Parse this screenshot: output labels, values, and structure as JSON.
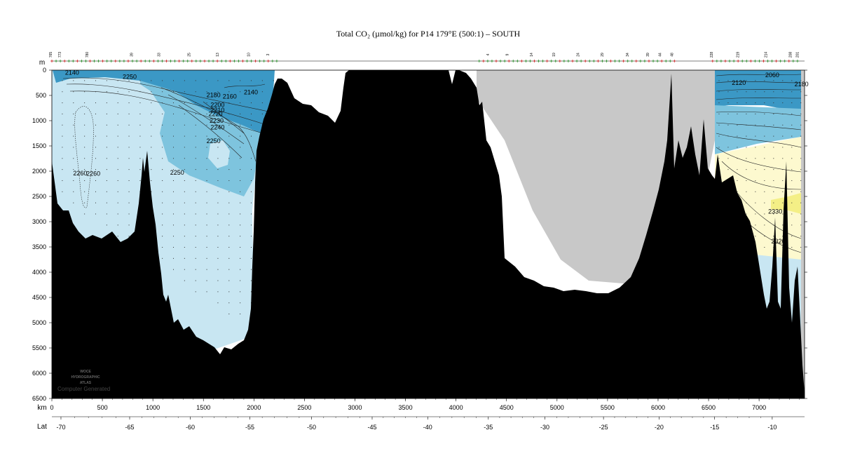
{
  "chart_data": {
    "type": "heatmap",
    "title": "Total CO₂ (µmol/kg) for P14 179°E (500:1) – SOUTH",
    "depth_unit": "m",
    "distance_unit": "km",
    "lat_label": "Lat",
    "xlim": [
      0,
      7450
    ],
    "ylim": [
      6500,
      0
    ],
    "depth_ticks": [
      0,
      500,
      1000,
      1500,
      2000,
      2500,
      3000,
      3500,
      4000,
      4500,
      5000,
      5500,
      6000,
      6500
    ],
    "km_ticks": [
      0,
      500,
      1000,
      1500,
      2000,
      2500,
      3000,
      3500,
      4000,
      4500,
      5000,
      5500,
      6000,
      6500,
      7000
    ],
    "lat_ticks": [
      {
        "label": "-70",
        "km": 90
      },
      {
        "label": "-65",
        "km": 770
      },
      {
        "label": "-60",
        "km": 1370
      },
      {
        "label": "-55",
        "km": 1960
      },
      {
        "label": "-50",
        "km": 2570
      },
      {
        "label": "-45",
        "km": 3170
      },
      {
        "label": "-40",
        "km": 3720
      },
      {
        "label": "-35",
        "km": 4320
      },
      {
        "label": "-30",
        "km": 4880
      },
      {
        "label": "-25",
        "km": 5460
      },
      {
        "label": "-20",
        "km": 6010
      },
      {
        "label": "-15",
        "km": 6560
      },
      {
        "label": "-10",
        "km": 7130
      }
    ],
    "station_labels": [
      {
        "text": "765",
        "km": 0
      },
      {
        "text": "773",
        "km": 90
      },
      {
        "text": "780",
        "km": 360
      },
      {
        "text": "39",
        "km": 800
      },
      {
        "text": "33",
        "km": 1070
      },
      {
        "text": "25",
        "km": 1370
      },
      {
        "text": "13",
        "km": 1650
      },
      {
        "text": "10",
        "km": 1960
      },
      {
        "text": "3",
        "km": 2150
      },
      {
        "text": "4",
        "km": 4330
      },
      {
        "text": "9",
        "km": 4520
      },
      {
        "text": "14",
        "km": 4760
      },
      {
        "text": "19",
        "km": 4980
      },
      {
        "text": "24",
        "km": 5220
      },
      {
        "text": "29",
        "km": 5460
      },
      {
        "text": "34",
        "km": 5710
      },
      {
        "text": "39",
        "km": 5910
      },
      {
        "text": "44",
        "km": 6030
      },
      {
        "text": "48",
        "km": 6150
      },
      {
        "text": "228",
        "km": 6540
      },
      {
        "text": "219",
        "km": 6800
      },
      {
        "text": "214",
        "km": 7080
      },
      {
        "text": "208",
        "km": 7320
      },
      {
        "text": "201",
        "km": 7390
      }
    ],
    "contour_labels": [
      {
        "text": "2140",
        "km": 200,
        "depth": 50
      },
      {
        "text": "2250",
        "km": 770,
        "depth": 130
      },
      {
        "text": "2180",
        "km": 1600,
        "depth": 490
      },
      {
        "text": "2160",
        "km": 1760,
        "depth": 520
      },
      {
        "text": "2140",
        "km": 1970,
        "depth": 440
      },
      {
        "text": "2200",
        "km": 1640,
        "depth": 690
      },
      {
        "text": "2210",
        "km": 1640,
        "depth": 790
      },
      {
        "text": "2220",
        "km": 1620,
        "depth": 870
      },
      {
        "text": "2230",
        "km": 1630,
        "depth": 1000
      },
      {
        "text": "2240",
        "km": 1640,
        "depth": 1130
      },
      {
        "text": "2250",
        "km": 1600,
        "depth": 1400
      },
      {
        "text": "2260",
        "km": 280,
        "depth": 2040
      },
      {
        "text": "2260",
        "km": 410,
        "depth": 2050
      },
      {
        "text": "2250",
        "km": 1240,
        "depth": 2030
      },
      {
        "text": "2330",
        "km": 7160,
        "depth": 2800
      },
      {
        "text": "2320",
        "km": 7190,
        "depth": 3390
      },
      {
        "text": "2120",
        "km": 6800,
        "depth": 250
      },
      {
        "text": "2060",
        "km": 7130,
        "depth": 100
      },
      {
        "text": "2180",
        "km": 7420,
        "depth": 280
      }
    ],
    "watermark": [
      "WOCE",
      "HYDROGRAPHIC",
      "ATLAS"
    ],
    "credit": "Computer Generated",
    "colors": {
      "pale_blue": "#c8e6f2",
      "mid_blue": "#7ec4de",
      "deep_blue": "#3b98c5",
      "pale_yellow": "#fdf9cf",
      "yellow": "#f4ef86",
      "no_data_gray": "#c8c8c8",
      "seafloor": "#000000"
    }
  }
}
